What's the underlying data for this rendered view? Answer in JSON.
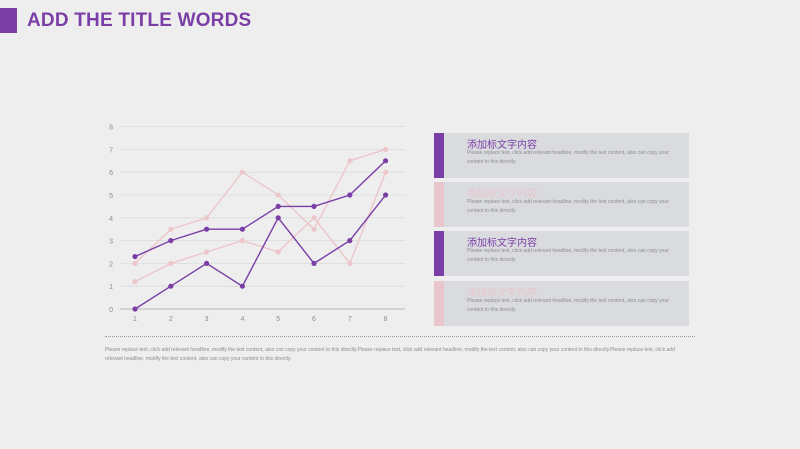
{
  "slide": {
    "title": "ADD THE TITLE WORDS",
    "accent_color": "#7a3ea6",
    "secondary_color": "#e8c6cb",
    "footnote": "Please replace text, click add relevant headline, modify the text content, also can copy your content to this directly.Please replace text, click add relevant headline, modify the text content, also can copy your content to this directly.Please replace text, click add relevant headline, modify the text content, also can copy your content to this directly."
  },
  "cards": [
    {
      "title": "添加标文字内容",
      "body": "Please replace text, click add relevant headline, modify the text content, also can copy your content to this directly.",
      "style": "purple"
    },
    {
      "title": "添加标文字内容",
      "body": "Please replace text, click add relevant headline, modify the text content, also can copy your content to this directly.",
      "style": "pink"
    },
    {
      "title": "添加标文字内容",
      "body": "Please replace text, click add relevant headline, modify the text content, also can copy your content to this directly.",
      "style": "purple"
    },
    {
      "title": "添加标文字内容",
      "body": "Please replace text, click add relevant headline, modify the text content, also can copy your content to this directly.",
      "style": "pink"
    }
  ],
  "chart_data": {
    "type": "line",
    "x": [
      1,
      2,
      3,
      4,
      5,
      6,
      7,
      8
    ],
    "ylim": [
      0,
      8
    ],
    "yticks": [
      0,
      1,
      2,
      3,
      4,
      5,
      6,
      7,
      8
    ],
    "grid": true,
    "series": [
      {
        "values": [
          2.3,
          3.0,
          3.5,
          3.5,
          4.5,
          4.5,
          5.0,
          6.5
        ],
        "color": "#7a3ea6"
      },
      {
        "values": [
          0.0,
          1.0,
          2.0,
          1.0,
          4.0,
          2.0,
          3.0,
          5.0
        ],
        "color": "#7a3ea6"
      },
      {
        "values": [
          2.0,
          3.5,
          4.0,
          6.0,
          5.0,
          3.5,
          6.5,
          7.0
        ],
        "color": "#ecc6c9"
      },
      {
        "values": [
          1.2,
          2.0,
          2.5,
          3.0,
          2.5,
          4.0,
          2.0,
          6.0
        ],
        "color": "#ecc6c9"
      }
    ]
  }
}
